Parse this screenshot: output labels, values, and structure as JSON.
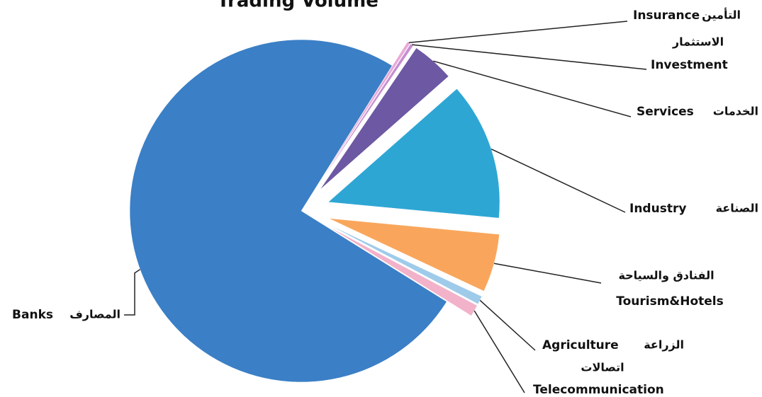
{
  "chart_data": {
    "type": "pie",
    "title": "Trading Volume",
    "categories": [
      "Banks",
      "Insurance",
      "Investment",
      "Services",
      "Industry",
      "Tourism&Hotels",
      "Agriculture",
      "Telecommunication"
    ],
    "labels_ar": [
      "المصارف",
      "التأمين",
      "الاستثمار",
      "الخدمات",
      "الصناعة",
      "الفنادق والسياحة",
      "الزراعة",
      "اتصالات"
    ],
    "values": [
      75,
      0.3,
      0.3,
      4,
      13,
      5.5,
      0.8,
      1.1
    ],
    "colors": [
      "#3b7fc6",
      "#e9a9d9",
      "#c58fd0",
      "#6d58a3",
      "#2ea6d4",
      "#f9a65c",
      "#9fcbea",
      "#f2b2c9"
    ],
    "start_angle": 122
  }
}
